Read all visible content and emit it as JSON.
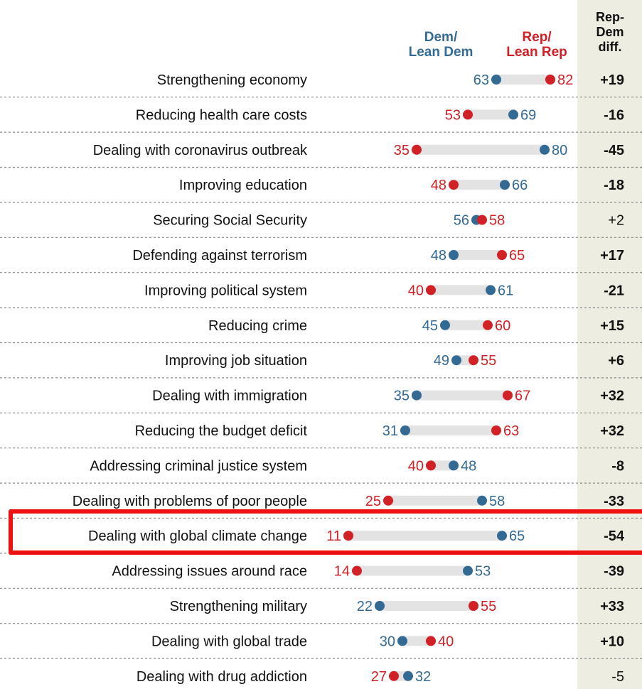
{
  "colors": {
    "dem": "#336a94",
    "rep": "#d12026",
    "track": "#e3e3e3",
    "diff_bg": "#eeede1",
    "highlight": "#ee1111"
  },
  "header": {
    "dem_line1": "Dem/",
    "dem_line2": "Lean Dem",
    "rep_line1": "Rep/",
    "rep_line2": "Lean Rep",
    "diff_line1": "Rep-",
    "diff_line2": "Dem",
    "diff_line3": "diff."
  },
  "highlighted_category": "Dealing with global climate change",
  "chart_data": {
    "type": "dot",
    "categories": [
      "Strengthening economy",
      "Reducing health care costs",
      "Dealing with coronavirus outbreak",
      "Improving education",
      "Securing Social Security",
      "Defending against terrorism",
      "Improving political system",
      "Reducing crime",
      "Improving job situation",
      "Dealing with immigration",
      "Reducing the budget deficit",
      "Addressing criminal justice system",
      "Dealing with problems of poor people",
      "Dealing with global climate change",
      "Addressing issues around race",
      "Strengthening military",
      "Dealing with global trade",
      "Dealing with drug addiction"
    ],
    "series": [
      {
        "name": "Dem/Lean Dem",
        "values": [
          63,
          69,
          80,
          66,
          56,
          48,
          61,
          45,
          49,
          35,
          31,
          48,
          58,
          65,
          53,
          22,
          30,
          32
        ]
      },
      {
        "name": "Rep/Lean Rep",
        "values": [
          82,
          53,
          35,
          48,
          58,
          65,
          40,
          60,
          55,
          67,
          63,
          40,
          25,
          11,
          14,
          55,
          40,
          27
        ]
      }
    ],
    "diff": {
      "name": "Rep-Dem diff.",
      "values": [
        "+19",
        "-16",
        "-45",
        "-18",
        "+2",
        "+17",
        "-21",
        "+15",
        "+6",
        "+32",
        "+32",
        "-8",
        "-33",
        "-54",
        "-39",
        "+33",
        "+10",
        "-5"
      ],
      "bold": [
        true,
        true,
        true,
        true,
        false,
        true,
        true,
        true,
        true,
        true,
        true,
        true,
        true,
        true,
        true,
        true,
        true,
        false
      ]
    }
  }
}
